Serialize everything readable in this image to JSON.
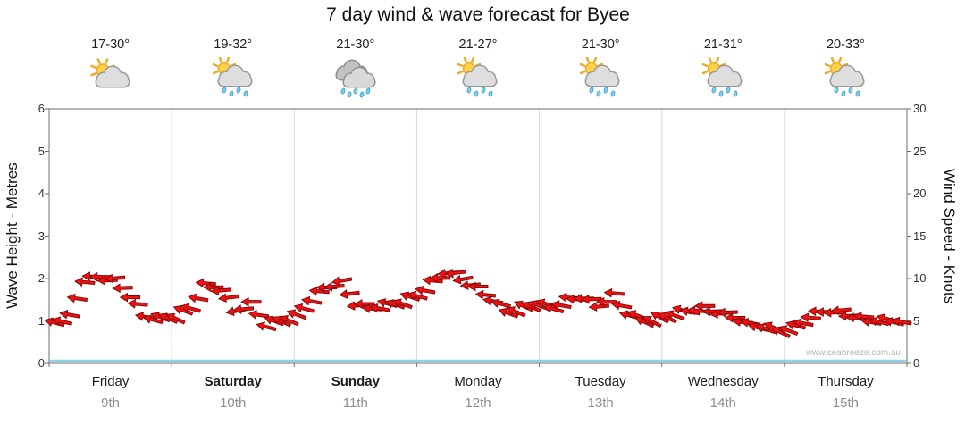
{
  "title": "7 day wind & wave forecast for Byee",
  "watermark": "www.seabreeze.com.au",
  "axes": {
    "left_label": "Wave Height - Metres",
    "right_label": "Wind Speed - Knots",
    "left_ticks": [
      0,
      1,
      2,
      3,
      4,
      5,
      6
    ],
    "right_ticks": [
      0,
      5,
      10,
      15,
      20,
      25,
      30
    ]
  },
  "days": [
    {
      "name": "Friday",
      "date": "9th",
      "temp": "17-30°",
      "icon": "partly-cloudy",
      "bold": false
    },
    {
      "name": "Saturday",
      "date": "10th",
      "temp": "19-32°",
      "icon": "sun-showers",
      "bold": true
    },
    {
      "name": "Sunday",
      "date": "11th",
      "temp": "21-30°",
      "icon": "rain",
      "bold": true
    },
    {
      "name": "Monday",
      "date": "12th",
      "temp": "21-27°",
      "icon": "sun-showers",
      "bold": false
    },
    {
      "name": "Tuesday",
      "date": "13th",
      "temp": "21-30°",
      "icon": "sun-showers",
      "bold": false
    },
    {
      "name": "Wednesday",
      "date": "14th",
      "temp": "21-31°",
      "icon": "sun-showers",
      "bold": false
    },
    {
      "name": "Thursday",
      "date": "15th",
      "temp": "20-33°",
      "icon": "sun-showers",
      "bold": false
    }
  ],
  "chart_data": {
    "type": "line",
    "title": "7 day wind & wave forecast for Byee",
    "categories_days": [
      "Friday 9th",
      "Saturday 10th",
      "Sunday 11th",
      "Monday 12th",
      "Tuesday 13th",
      "Wednesday 14th",
      "Thursday 15th"
    ],
    "points_per_day": 8,
    "ylabel_left": "Wave Height - Metres",
    "ylabel_right": "Wind Speed - Knots",
    "ylim_left": [
      0,
      6
    ],
    "ylim_right": [
      0,
      30
    ],
    "grid": "vertical-day-separators",
    "legend": "none",
    "series": [
      {
        "name": "Wind speed & direction",
        "marker": "wind-arrow",
        "axis": "right",
        "unit": "knots",
        "color": "#ee1111",
        "values": [
          4.8,
          5.5,
          9.8,
          10.2,
          9.8,
          8.0,
          5.5,
          5.2,
          5.5,
          6.5,
          9.2,
          8.8,
          6.2,
          7.0,
          4.5,
          5.0,
          5.5,
          7.5,
          9.0,
          9.5,
          7.0,
          6.5,
          6.8,
          7.2,
          8.0,
          9.5,
          10.8,
          10.0,
          8.8,
          7.5,
          6.0,
          6.5,
          7.0,
          6.5,
          7.5,
          7.8,
          6.8,
          8.0,
          5.8,
          5.0,
          5.2,
          5.8,
          6.2,
          6.5,
          6.0,
          5.5,
          4.5,
          4.2,
          3.8,
          4.2,
          5.5,
          6.2,
          6.0,
          5.5,
          5.0,
          5.0,
          5.0
        ],
        "arrow_angles_deg": [
          195,
          190,
          185,
          180,
          175,
          180,
          190,
          200,
          205,
          195,
          185,
          175,
          170,
          180,
          195,
          205,
          200,
          190,
          180,
          170,
          175,
          185,
          195,
          200,
          195,
          185,
          175,
          170,
          180,
          190,
          200,
          205,
          200,
          195,
          185,
          180,
          175,
          185,
          195,
          205,
          210,
          200,
          190,
          180,
          175,
          180,
          190,
          200,
          205,
          195,
          185,
          180,
          175,
          180,
          190,
          195,
          190
        ]
      },
      {
        "name": "baseline",
        "axis": "right",
        "color": "#8ed2e9",
        "values_constant": 0
      }
    ]
  }
}
